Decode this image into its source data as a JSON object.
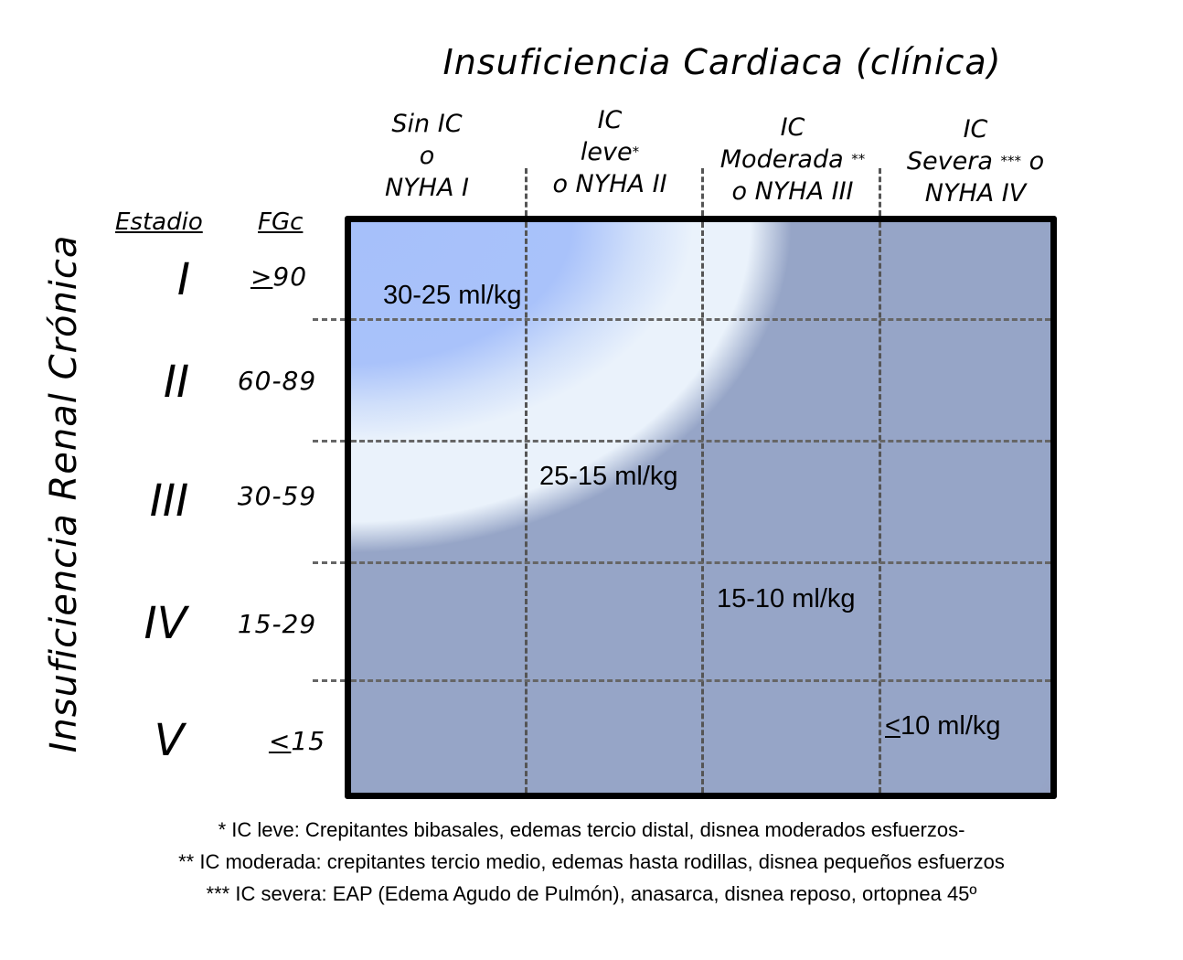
{
  "title": "Insuficiencia Cardiaca (clínica)",
  "y_axis_label": "Insuficiencia Renal Crónica",
  "row_headers": {
    "stage_label": "Estadio",
    "fgc_label": "FGc"
  },
  "columns": [
    {
      "line1": "Sin IC",
      "line2": "o",
      "line3": "NYHA I",
      "mark": ""
    },
    {
      "line1": "IC",
      "line2": "leve",
      "line3": "o NYHA II",
      "mark": "*"
    },
    {
      "line1": "IC",
      "line2": "Moderada",
      "line3": "o NYHA III",
      "mark": "**"
    },
    {
      "line1": "IC",
      "line2": "Severa",
      "line3": "NYHA IV",
      "mark": "***",
      "suffix": "o"
    }
  ],
  "rows": [
    {
      "stage": "I",
      "fgc_prefix": ">",
      "fgc": "90"
    },
    {
      "stage": "II",
      "fgc_prefix": "",
      "fgc": "60-89"
    },
    {
      "stage": "III",
      "fgc_prefix": "",
      "fgc": "30-59"
    },
    {
      "stage": "IV",
      "fgc_prefix": "",
      "fgc": "15-29"
    },
    {
      "stage": "V",
      "fgc_prefix": "<",
      "fgc": "15"
    }
  ],
  "zones": [
    {
      "label": "30-25 ml/kg",
      "color": "#a9c2fa"
    },
    {
      "label": "25-15 ml/kg",
      "color": "#eaf2fb"
    },
    {
      "label": "15-10 ml/kg",
      "color": "#96a5c7"
    },
    {
      "label_prefix": "<",
      "label": "10 ml/kg",
      "color": "#968ca3"
    }
  ],
  "footnotes": [
    "* IC leve: Crepitantes bibasales, edemas tercio distal, disnea moderados esfuerzos-",
    "** IC moderada: crepitantes tercio medio, edemas hasta rodillas, disnea pequeños esfuerzos",
    "*** IC severa: EAP (Edema Agudo de Pulmón), anasarca, disnea reposo, ortopnea 45º"
  ]
}
